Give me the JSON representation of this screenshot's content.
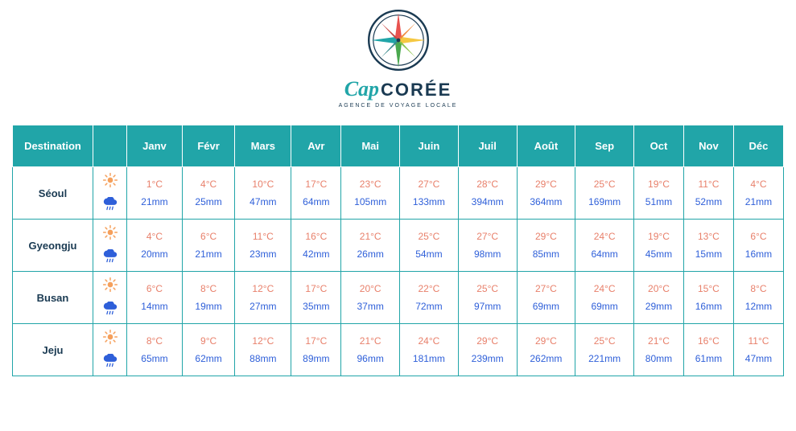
{
  "brand": {
    "cap_text": "Cap",
    "coree_text": "CORÉE",
    "tagline": "AGENCE DE VOYAGE LOCALE",
    "cap_color": "#21a5a8",
    "coree_color": "#1a3a52"
  },
  "compass_colors": {
    "ring": "#1a3a52",
    "north": "#e8524f",
    "east": "#f5c842",
    "south": "#4aa84e",
    "west": "#21a5a8"
  },
  "table": {
    "type": "table",
    "header_bg": "#21a5a8",
    "header_text_color": "#ffffff",
    "border_color": "#21a5a8",
    "temp_color": "#e8806b",
    "rain_color": "#2e5fd9",
    "city_color": "#1a3a52",
    "header_fontsize": 13,
    "cell_fontsize": 12,
    "city_fontsize": 13,
    "columns": [
      "Destination",
      "",
      "Janv",
      "Févr",
      "Mars",
      "Avr",
      "Mai",
      "Juin",
      "Juil",
      "Août",
      "Sep",
      "Oct",
      "Nov",
      "Déc"
    ],
    "rows": [
      {
        "city": "Séoul",
        "temp": [
          "1°C",
          "4°C",
          "10°C",
          "17°C",
          "23°C",
          "27°C",
          "28°C",
          "29°C",
          "25°C",
          "19°C",
          "11°C",
          "4°C"
        ],
        "rain": [
          "21mm",
          "25mm",
          "47mm",
          "64mm",
          "105mm",
          "133mm",
          "394mm",
          "364mm",
          "169mm",
          "51mm",
          "52mm",
          "21mm"
        ]
      },
      {
        "city": "Gyeongju",
        "temp": [
          "4°C",
          "6°C",
          "11°C",
          "16°C",
          "21°C",
          "25°C",
          "27°C",
          "29°C",
          "24°C",
          "19°C",
          "13°C",
          "6°C"
        ],
        "rain": [
          "20mm",
          "21mm",
          "23mm",
          "42mm",
          "26mm",
          "54mm",
          "98mm",
          "85mm",
          "64mm",
          "45mm",
          "15mm",
          "16mm"
        ]
      },
      {
        "city": "Busan",
        "temp": [
          "6°C",
          "8°C",
          "12°C",
          "17°C",
          "20°C",
          "22°C",
          "25°C",
          "27°C",
          "24°C",
          "20°C",
          "15°C",
          "8°C"
        ],
        "rain": [
          "14mm",
          "19mm",
          "27mm",
          "35mm",
          "37mm",
          "72mm",
          "97mm",
          "69mm",
          "69mm",
          "29mm",
          "16mm",
          "12mm"
        ]
      },
      {
        "city": "Jeju",
        "temp": [
          "8°C",
          "9°C",
          "12°C",
          "17°C",
          "21°C",
          "24°C",
          "29°C",
          "29°C",
          "25°C",
          "21°C",
          "16°C",
          "11°C"
        ],
        "rain": [
          "65mm",
          "62mm",
          "88mm",
          "89mm",
          "96mm",
          "181mm",
          "239mm",
          "262mm",
          "221mm",
          "80mm",
          "61mm",
          "47mm"
        ]
      }
    ]
  }
}
